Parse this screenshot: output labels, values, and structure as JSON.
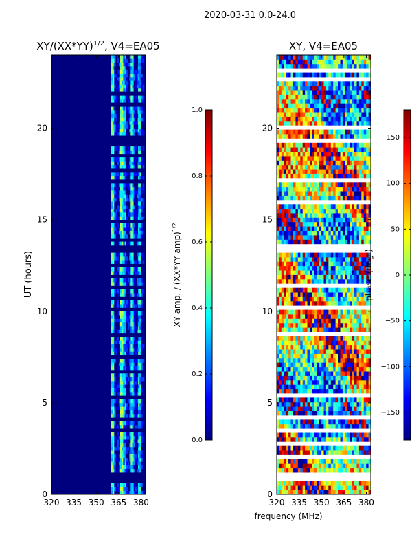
{
  "suptitle": "2020-03-31 0.0-24.0",
  "xlabel": "frequency (MHz)",
  "colors": {
    "background": "#00007f",
    "flag": "#ffffff",
    "jet": [
      "#00007f",
      "#0000ff",
      "#007fff",
      "#00ffff",
      "#7fff7f",
      "#ffff00",
      "#ff7f00",
      "#ff0000",
      "#7f0000"
    ]
  },
  "flag_bands_hours": [
    [
      0.7,
      1.15
    ],
    [
      1.95,
      2.05
    ],
    [
      2.75,
      2.85
    ],
    [
      3.45,
      3.55
    ],
    [
      4.1,
      4.2
    ],
    [
      4.75,
      4.85
    ],
    [
      5.3,
      5.4
    ],
    [
      6.15,
      6.25
    ],
    [
      6.7,
      6.8
    ],
    [
      7.4,
      7.5
    ],
    [
      8.15,
      8.25
    ],
    [
      8.7,
      8.8
    ],
    [
      9.55,
      9.65
    ],
    [
      10.1,
      10.2
    ],
    [
      10.7,
      10.8
    ],
    [
      11.3,
      11.4
    ],
    [
      11.9,
      12.0
    ],
    [
      12.5,
      12.6
    ],
    [
      13.3,
      13.6
    ],
    [
      13.9,
      14.0
    ],
    [
      14.8,
      14.9
    ],
    [
      15.35,
      15.45
    ],
    [
      15.95,
      16.05
    ],
    [
      16.55,
      16.65
    ],
    [
      17.1,
      17.2
    ],
    [
      17.7,
      17.8
    ],
    [
      18.4,
      18.5
    ],
    [
      19.1,
      19.5
    ],
    [
      19.95,
      20.05
    ],
    [
      20.6,
      20.7
    ],
    [
      21.25,
      21.35
    ],
    [
      21.85,
      21.95
    ],
    [
      22.6,
      22.7
    ],
    [
      23.15,
      23.25
    ]
  ],
  "chart_data": [
    {
      "type": "heatmap",
      "title": "XY/(XX*YY)$^{1/2}$, V4=EA05",
      "title_main": "XY/(XX*YY)",
      "title_sup": "1/2",
      "title_tail": ", V4=EA05",
      "ylabel": "UT (hours)",
      "xlabel": "",
      "xlim": [
        320,
        383
      ],
      "ylim": [
        0,
        24
      ],
      "xticks": [
        320,
        335,
        350,
        365,
        380
      ],
      "yticks": [
        0,
        5,
        10,
        15,
        20
      ],
      "xtick_labels": [
        "320",
        "335",
        "350",
        "365",
        "380"
      ],
      "ytick_labels": [
        "0",
        "5",
        "10",
        "15",
        "20"
      ],
      "active_band_mhz": [
        360,
        382
      ],
      "bright_channels_mhz": [
        {
          "freq": 361,
          "value": 0.55
        },
        {
          "freq": 367,
          "value": 0.6
        },
        {
          "freq": 369,
          "value": 0.35
        },
        {
          "freq": 374,
          "value": 0.5
        },
        {
          "freq": 379,
          "value": 0.45
        }
      ],
      "colorbar": {
        "label": "XY amp. / (XX*YY amp)$^{1/2}$",
        "label_main": "XY amp. / (XX*YY amp)",
        "label_sup": "1/2",
        "range": [
          0.0,
          1.0
        ],
        "ticks": [
          0.0,
          0.2,
          0.4,
          0.6,
          0.8,
          1.0
        ],
        "tick_labels": [
          "0.0",
          "0.2",
          "0.4",
          "0.6",
          "0.8",
          "1.0"
        ]
      }
    },
    {
      "type": "heatmap",
      "title": "XY, V4=EA05",
      "ylabel": "",
      "xlabel": "frequency (MHz)",
      "xlim": [
        320,
        383
      ],
      "ylim": [
        0,
        24
      ],
      "xticks": [
        320,
        335,
        350,
        365,
        380
      ],
      "yticks": [
        0,
        5,
        10,
        15,
        20
      ],
      "xtick_labels": [
        "320",
        "335",
        "350",
        "365",
        "380"
      ],
      "ytick_labels": [
        "0",
        "5",
        "10",
        "15",
        "20"
      ],
      "value_range_deg": [
        -180,
        180
      ],
      "colorbar": {
        "label": "phase (deg.)",
        "range": [
          -180,
          180
        ],
        "ticks": [
          150,
          100,
          50,
          0,
          -50,
          -100,
          -150
        ],
        "tick_labels": [
          "150",
          "100",
          "50",
          "0",
          "−50",
          "−100",
          "−150"
        ]
      }
    }
  ]
}
